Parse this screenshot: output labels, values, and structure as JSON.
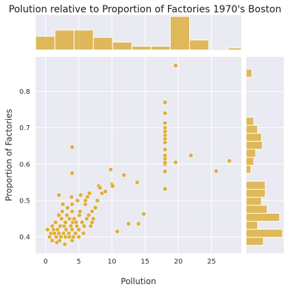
{
  "chart_data": {
    "type": "scatter",
    "title": "Polution relative to Proportion of Factories 1970's Boston",
    "xlabel": "Pollution",
    "ylabel": "Proportion of Factories",
    "xlim": [
      -1.5,
      29.5
    ],
    "ylim": [
      0.355,
      0.895
    ],
    "xticks": [
      0,
      5,
      10,
      15,
      20,
      25
    ],
    "yticks": [
      0.4,
      0.5,
      0.6,
      0.7,
      0.8
    ],
    "grid": true,
    "color": "#daa520",
    "points": [
      [
        0.3,
        0.42
      ],
      [
        0.6,
        0.4
      ],
      [
        0.8,
        0.41
      ],
      [
        1.0,
        0.43
      ],
      [
        1.0,
        0.39
      ],
      [
        1.2,
        0.42
      ],
      [
        1.3,
        0.41
      ],
      [
        1.5,
        0.44
      ],
      [
        1.6,
        0.4
      ],
      [
        1.7,
        0.385
      ],
      [
        1.8,
        0.42
      ],
      [
        2.0,
        0.41
      ],
      [
        2.0,
        0.46
      ],
      [
        2.0,
        0.515
      ],
      [
        2.1,
        0.39
      ],
      [
        2.2,
        0.43
      ],
      [
        2.3,
        0.4
      ],
      [
        2.4,
        0.45
      ],
      [
        2.5,
        0.47
      ],
      [
        2.6,
        0.49
      ],
      [
        2.7,
        0.41
      ],
      [
        2.8,
        0.43
      ],
      [
        2.9,
        0.38
      ],
      [
        3.0,
        0.4
      ],
      [
        3.0,
        0.44
      ],
      [
        3.1,
        0.42
      ],
      [
        3.2,
        0.46
      ],
      [
        3.3,
        0.48
      ],
      [
        3.5,
        0.41
      ],
      [
        3.6,
        0.4
      ],
      [
        3.6,
        0.45
      ],
      [
        3.8,
        0.43
      ],
      [
        3.9,
        0.51
      ],
      [
        4.0,
        0.39
      ],
      [
        4.0,
        0.42
      ],
      [
        4.0,
        0.47
      ],
      [
        4.0,
        0.49
      ],
      [
        4.0,
        0.575
      ],
      [
        4.0,
        0.647
      ],
      [
        4.1,
        0.44
      ],
      [
        4.2,
        0.4
      ],
      [
        4.3,
        0.45
      ],
      [
        4.5,
        0.41
      ],
      [
        4.6,
        0.44
      ],
      [
        4.7,
        0.43
      ],
      [
        4.8,
        0.5
      ],
      [
        5.0,
        0.4
      ],
      [
        5.0,
        0.42
      ],
      [
        5.1,
        0.46
      ],
      [
        5.2,
        0.47
      ],
      [
        5.3,
        0.515
      ],
      [
        5.5,
        0.44
      ],
      [
        5.7,
        0.41
      ],
      [
        5.8,
        0.43
      ],
      [
        6.0,
        0.49
      ],
      [
        6.0,
        0.5
      ],
      [
        6.2,
        0.45
      ],
      [
        6.3,
        0.51
      ],
      [
        6.5,
        0.46
      ],
      [
        6.6,
        0.52
      ],
      [
        6.8,
        0.43
      ],
      [
        7.0,
        0.44
      ],
      [
        7.0,
        0.47
      ],
      [
        7.2,
        0.45
      ],
      [
        7.5,
        0.48
      ],
      [
        7.8,
        0.5
      ],
      [
        8.0,
        0.54
      ],
      [
        8.2,
        0.535
      ],
      [
        8.5,
        0.52
      ],
      [
        9.0,
        0.525
      ],
      [
        9.8,
        0.585
      ],
      [
        10.0,
        0.545
      ],
      [
        10.1,
        0.54
      ],
      [
        10.8,
        0.415
      ],
      [
        11.8,
        0.57
      ],
      [
        12.5,
        0.436
      ],
      [
        13.8,
        0.55
      ],
      [
        14.0,
        0.436
      ],
      [
        14.8,
        0.463
      ],
      [
        18.0,
        0.532
      ],
      [
        18.0,
        0.58
      ],
      [
        18.0,
        0.6
      ],
      [
        18.0,
        0.605
      ],
      [
        18.0,
        0.615
      ],
      [
        18.0,
        0.624
      ],
      [
        18.0,
        0.64
      ],
      [
        18.0,
        0.66
      ],
      [
        18.0,
        0.67
      ],
      [
        18.0,
        0.68
      ],
      [
        18.0,
        0.69
      ],
      [
        18.0,
        0.7
      ],
      [
        18.0,
        0.713
      ],
      [
        18.0,
        0.74
      ],
      [
        18.0,
        0.77
      ],
      [
        19.6,
        0.605
      ],
      [
        19.6,
        0.871
      ],
      [
        21.9,
        0.624
      ],
      [
        25.7,
        0.581
      ],
      [
        27.7,
        0.609
      ]
    ],
    "x_hist": {
      "bins": [
        -1.5,
        1.4,
        4.3,
        7.2,
        10.1,
        13.0,
        15.9,
        18.8,
        21.7,
        24.6,
        27.5,
        29.5
      ],
      "counts": [
        26,
        38,
        38,
        24,
        15,
        7,
        7,
        64,
        19,
        0,
        4
      ]
    },
    "y_hist": {
      "bins": [
        0.355,
        0.377,
        0.399,
        0.421,
        0.443,
        0.465,
        0.487,
        0.509,
        0.531,
        0.553,
        0.575,
        0.597,
        0.619,
        0.641,
        0.663,
        0.685,
        0.707,
        0.729,
        0.751,
        0.773,
        0.795,
        0.817,
        0.839,
        0.861,
        0.883
      ],
      "counts": [
        0,
        18,
        38,
        12,
        35,
        22,
        16,
        20,
        20,
        0,
        5,
        8,
        10,
        17,
        16,
        12,
        8,
        0,
        0,
        0,
        0,
        0,
        6,
        0
      ]
    }
  }
}
